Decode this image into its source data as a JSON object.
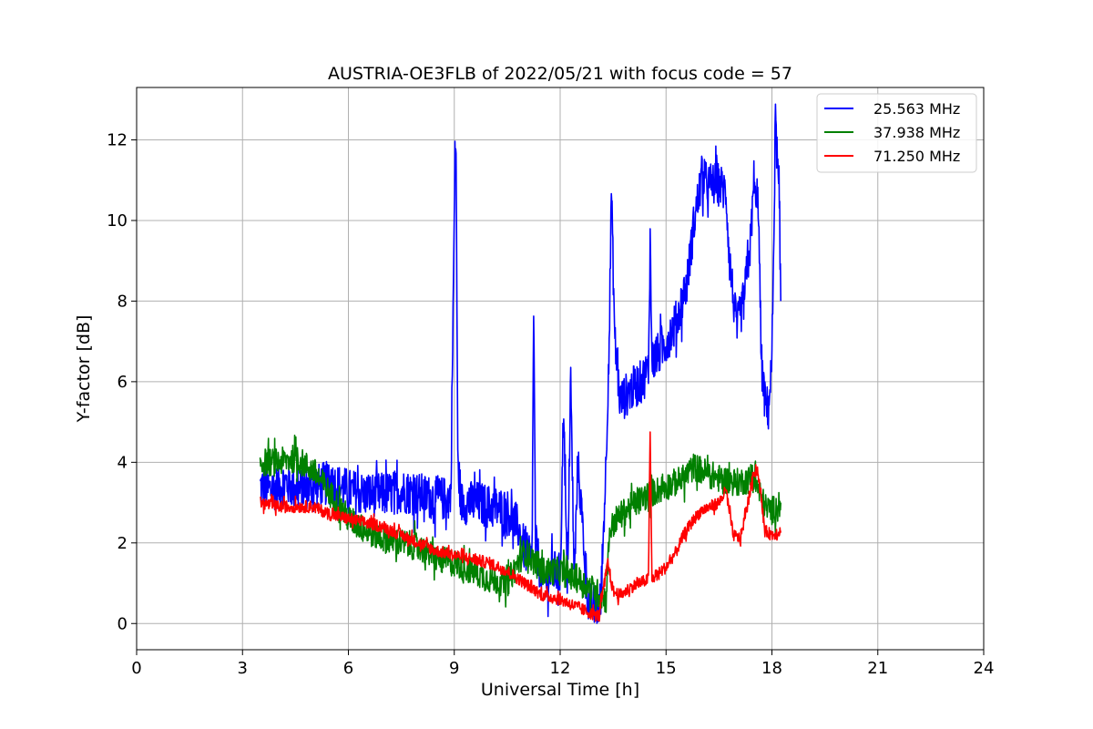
{
  "chart_data": {
    "type": "line",
    "title": "AUSTRIA-OE3FLB of 2022/05/21 with focus code = 57",
    "xlabel": "Universal Time [h]",
    "ylabel": "Y-factor [dB]",
    "xlim": [
      0,
      24
    ],
    "ylim": [
      -0.65,
      13.3
    ],
    "xticks": [
      0,
      3,
      6,
      9,
      12,
      15,
      18,
      21,
      24
    ],
    "yticks": [
      0,
      2,
      4,
      6,
      8,
      10,
      12
    ],
    "grid": true,
    "legend_position": "top-right",
    "series": [
      {
        "name": "25.563 MHz",
        "color": "#0000ff",
        "noise": 0.55,
        "x": [
          3.5,
          3.8,
          4.2,
          4.6,
          5.0,
          5.5,
          6.0,
          6.5,
          7.0,
          7.5,
          8.0,
          8.5,
          8.9,
          9.02,
          9.05,
          9.1,
          9.2,
          9.6,
          10.0,
          10.5,
          10.8,
          11.0,
          11.2,
          11.25,
          11.3,
          11.5,
          11.8,
          12.0,
          12.1,
          12.2,
          12.3,
          12.4,
          12.5,
          12.8,
          13.0,
          13.15,
          13.3,
          13.4,
          13.45,
          13.55,
          13.7,
          14.0,
          14.3,
          14.5,
          14.55,
          14.6,
          14.8,
          15.0,
          15.3,
          15.6,
          15.8,
          16.0,
          16.2,
          16.5,
          16.7,
          16.8,
          17.0,
          17.2,
          17.4,
          17.5,
          17.55,
          17.6,
          17.7,
          17.8,
          17.9,
          18.0,
          18.1,
          18.2,
          18.25
        ],
        "y": [
          3.4,
          3.3,
          3.5,
          3.3,
          3.4,
          3.5,
          3.3,
          3.2,
          3.2,
          3.3,
          3.2,
          3.1,
          3.1,
          11.5,
          11.8,
          4.0,
          3.0,
          3.0,
          2.9,
          2.8,
          2.4,
          1.8,
          1.5,
          7.8,
          2.0,
          1.0,
          1.3,
          1.2,
          5.5,
          0.8,
          6.0,
          1.0,
          4.0,
          0.5,
          0.4,
          0.5,
          4.0,
          7.5,
          10.8,
          7.0,
          5.5,
          5.8,
          6.0,
          6.3,
          9.5,
          6.5,
          6.7,
          7.0,
          7.5,
          8.5,
          10.0,
          11.0,
          10.9,
          10.9,
          10.7,
          9.0,
          7.3,
          8.0,
          9.5,
          11.2,
          10.0,
          11.0,
          6.5,
          5.5,
          5.3,
          6.5,
          12.5,
          10.5,
          8.0
        ]
      },
      {
        "name": "37.938 MHz",
        "color": "#008000",
        "noise": 0.35,
        "x": [
          3.5,
          4.0,
          4.5,
          5.0,
          5.5,
          6.0,
          6.5,
          7.0,
          7.5,
          8.0,
          8.5,
          9.0,
          9.5,
          10.0,
          10.5,
          10.8,
          11.0,
          11.5,
          12.0,
          12.5,
          13.0,
          13.3,
          13.4,
          13.6,
          14.0,
          14.5,
          15.0,
          15.5,
          15.8,
          16.0,
          16.5,
          17.0,
          17.5,
          17.8,
          18.0,
          18.25
        ],
        "y": [
          4.0,
          4.0,
          4.1,
          3.8,
          3.2,
          2.6,
          2.3,
          2.1,
          2.0,
          1.9,
          1.6,
          1.5,
          1.3,
          1.1,
          1.0,
          1.5,
          1.8,
          1.3,
          1.3,
          1.1,
          0.8,
          0.6,
          2.3,
          2.6,
          2.9,
          3.2,
          3.4,
          3.6,
          3.9,
          3.8,
          3.6,
          3.5,
          3.6,
          2.9,
          2.8,
          3.0
        ]
      },
      {
        "name": "71.250 MHz",
        "color": "#ff0000",
        "noise": 0.15,
        "x": [
          3.5,
          4.0,
          4.5,
          5.0,
          5.5,
          6.0,
          6.5,
          7.0,
          7.5,
          8.0,
          8.5,
          9.0,
          9.5,
          10.0,
          10.5,
          11.0,
          11.5,
          12.0,
          12.5,
          13.0,
          13.1,
          13.35,
          13.5,
          13.7,
          14.0,
          14.5,
          14.55,
          14.6,
          15.0,
          15.3,
          15.5,
          15.8,
          16.0,
          16.5,
          16.7,
          16.9,
          17.1,
          17.3,
          17.5,
          17.6,
          17.8,
          18.0,
          18.25
        ],
        "y": [
          3.0,
          2.9,
          2.9,
          2.9,
          2.7,
          2.6,
          2.5,
          2.4,
          2.2,
          2.0,
          1.8,
          1.7,
          1.6,
          1.5,
          1.3,
          1.0,
          0.7,
          0.6,
          0.4,
          0.2,
          0.2,
          1.5,
          0.8,
          0.7,
          0.9,
          1.1,
          4.7,
          1.1,
          1.4,
          1.8,
          2.2,
          2.6,
          2.8,
          3.0,
          3.3,
          2.2,
          2.1,
          2.9,
          3.8,
          3.8,
          2.3,
          2.2,
          2.3
        ]
      }
    ]
  }
}
